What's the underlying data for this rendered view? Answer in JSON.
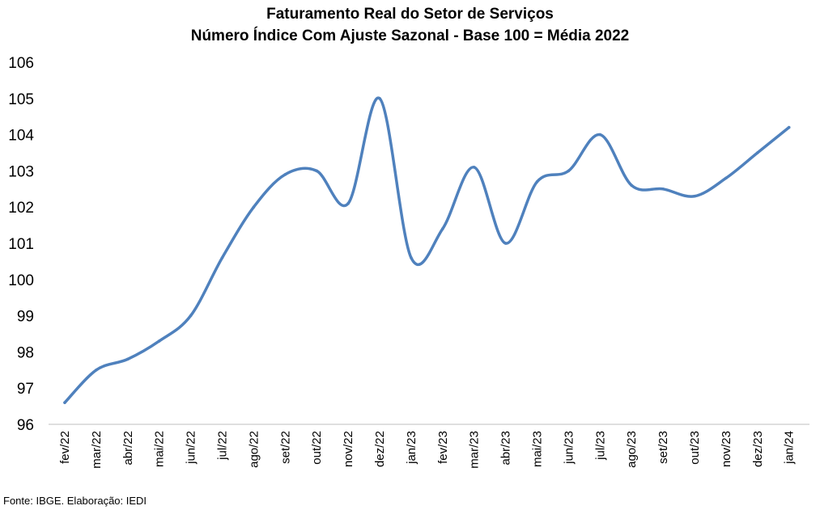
{
  "chart_data": {
    "type": "line",
    "title": "Faturamento Real do Setor de Serviços",
    "subtitle": "Número Índice Com Ajuste Sazonal - Base 100 = Média 2022",
    "xlabel": "",
    "ylabel": "",
    "ylim": [
      96,
      106
    ],
    "yticks": [
      96,
      97,
      98,
      99,
      100,
      101,
      102,
      103,
      104,
      105,
      106
    ],
    "grid": false,
    "legend": "none",
    "categories": [
      "fev/22",
      "mar/22",
      "abr/22",
      "mai/22",
      "jun/22",
      "jul/22",
      "ago/22",
      "set/22",
      "out/22",
      "nov/22",
      "dez/22",
      "jan/23",
      "fev/23",
      "mar/23",
      "abr/23",
      "mai/23",
      "jun/23",
      "jul/23",
      "ago/23",
      "set/23",
      "out/23",
      "nov/23",
      "dez/23",
      "jan/24"
    ],
    "series": [
      {
        "values": [
          96.6,
          97.5,
          97.8,
          98.3,
          99.0,
          100.6,
          102.0,
          102.9,
          103.0,
          102.1,
          105.0,
          100.6,
          101.4,
          103.1,
          101.0,
          102.7,
          103.0,
          104.0,
          102.6,
          102.5,
          102.3,
          102.8,
          103.5,
          104.2
        ],
        "color": "#4f81bd"
      }
    ]
  },
  "source_note": "Fonte: IBGE. Elaboração: IEDI",
  "colors": {
    "line": "#4f81bd",
    "axis": "#bfbfbf"
  }
}
